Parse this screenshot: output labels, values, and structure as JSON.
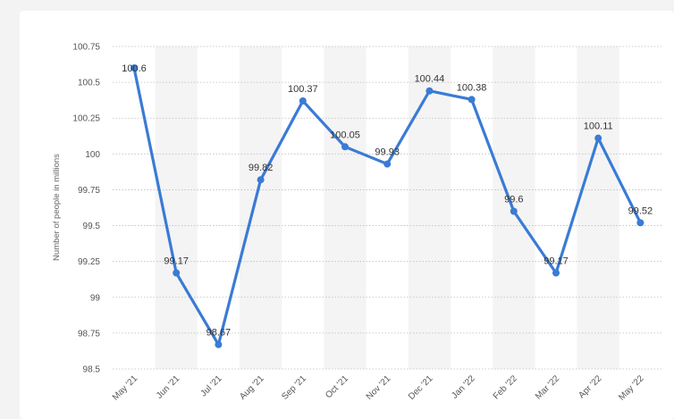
{
  "chart_data": {
    "type": "line",
    "categories": [
      "May '21",
      "Jun '21",
      "Jul '21",
      "Aug '21",
      "Sep '21",
      "Oct '21",
      "Nov '21",
      "Dec '21",
      "Jan '22",
      "Feb '22",
      "Mar '22",
      "Apr '22",
      "May '22"
    ],
    "series": [
      {
        "values": [
          100.6,
          99.17,
          98.67,
          99.82,
          100.37,
          100.05,
          99.93,
          100.44,
          100.38,
          99.6,
          99.17,
          100.11,
          99.52
        ]
      }
    ],
    "data_labels": [
      "100.6",
      "99.17",
      "98.67",
      "99.82",
      "100.37",
      "100.05",
      "99.93",
      "100.44",
      "100.38",
      "99.6",
      "99.17",
      "100.11",
      "99.52"
    ],
    "ylabel": "Number of people in millions",
    "xlabel": "",
    "yticks": [
      "98.5",
      "98.75",
      "99",
      "99.25",
      "99.5",
      "99.75",
      "100",
      "100.25",
      "100.5",
      "100.75"
    ],
    "ylim": [
      98.5,
      100.75
    ],
    "grid": true,
    "line_color": "#3a7bd5"
  }
}
